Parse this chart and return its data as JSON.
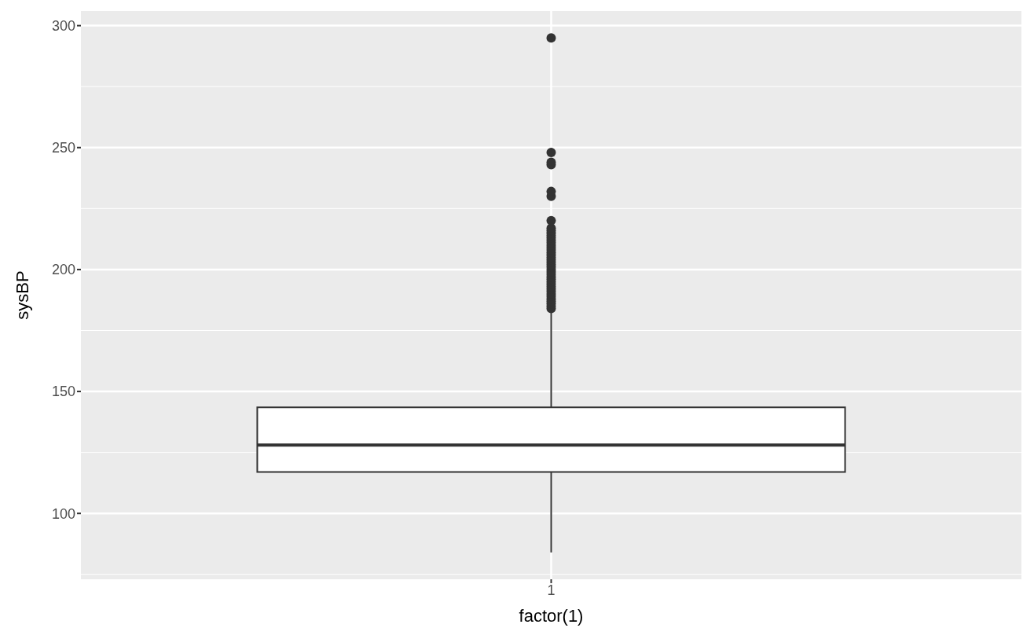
{
  "chart_data": {
    "type": "box",
    "categories": [
      "1"
    ],
    "xlabel": "factor(1)",
    "ylabel": "sysBP",
    "ylim": [
      73,
      306
    ],
    "yticks": [
      100,
      150,
      200,
      250,
      300
    ],
    "grid": true,
    "boxes": [
      {
        "low": 84,
        "q1": 117,
        "median": 128,
        "q3": 143.5,
        "high": 183,
        "outliers": [
          184,
          185,
          186,
          187,
          188,
          189,
          190,
          191,
          192,
          193,
          194,
          195,
          196,
          197,
          198,
          199,
          200,
          201,
          202,
          203,
          204,
          205,
          206,
          207,
          208,
          209,
          210,
          211,
          212,
          213,
          214,
          215,
          216,
          217,
          220,
          230,
          232,
          243,
          244,
          248,
          295
        ]
      }
    ]
  }
}
